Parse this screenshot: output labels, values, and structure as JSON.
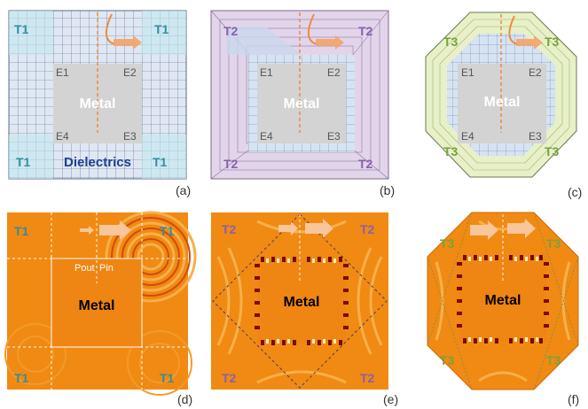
{
  "colors": {
    "t1": "#2f8f9f",
    "t2": "#8a5fb0",
    "t3": "#77a33a",
    "dielectrics": "#1f3f8f",
    "metal_gray": "#d3d3d3",
    "metal_gray_text": "#ffffff",
    "grid_blue": "#c9d7ec",
    "t2_fill": "#e2d5ea",
    "t3_fill": "#e7f0c8",
    "field_orange": "#f08a12",
    "arrow": "#f2a36a"
  },
  "icons": {
    "arrow": "orange-arrow-icon",
    "curve": "curved-path-icon"
  },
  "panels": {
    "a": {
      "sublabel": "(a)",
      "region_labels": [
        "T1",
        "T1",
        "T1",
        "T1"
      ],
      "metal": "Metal",
      "dielectrics": "Dielectrics",
      "edges": [
        "E1",
        "E2",
        "E4",
        "E3"
      ]
    },
    "b": {
      "sublabel": "(b)",
      "region_labels": [
        "T2",
        "T2",
        "T2",
        "T2"
      ],
      "metal": "Metal",
      "edges": [
        "E1",
        "E2",
        "E4",
        "E3"
      ]
    },
    "c": {
      "sublabel": "(c)",
      "region_labels": [
        "T3",
        "T3",
        "T3",
        "T3"
      ],
      "metal": "Metal",
      "edges": [
        "E1",
        "E2",
        "E4",
        "E3"
      ]
    },
    "d": {
      "sublabel": "(d)",
      "region_labels": [
        "T1",
        "T1",
        "T1",
        "T1"
      ],
      "metal": "Metal",
      "p_out": "Pout",
      "p_in": "Pin"
    },
    "e": {
      "sublabel": "(e)",
      "region_labels": [
        "T2",
        "T2",
        "T2",
        "T2"
      ],
      "metal": "Metal"
    },
    "f": {
      "sublabel": "(f)",
      "region_labels": [
        "T3",
        "T3",
        "T3",
        "T3"
      ],
      "metal": "Metal"
    }
  }
}
